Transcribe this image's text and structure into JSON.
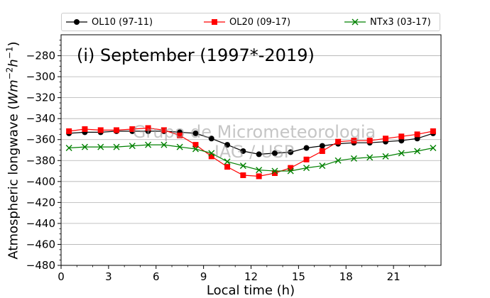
{
  "chart_data": {
    "type": "line",
    "title": "(i) September (1997*-2019)",
    "xlabel": "Local time (h)",
    "ylabel_main": "Atmospheric longwave (",
    "ylabel_unit": "Wm",
    "ylabel_exp1": "−2",
    "ylabel_unit2": "h",
    "ylabel_exp2": "−1",
    "ylabel_close": ")",
    "xlim": [
      0,
      24
    ],
    "ylim": [
      -480,
      -260
    ],
    "xticks": [
      0,
      3,
      6,
      9,
      12,
      15,
      18,
      21
    ],
    "yticks": [
      -480,
      -460,
      -440,
      -420,
      -400,
      -380,
      -360,
      -340,
      -320,
      -300,
      -280
    ],
    "grid": "horizontal",
    "legend_position": "top",
    "watermark": "Grupo de Micrometeorologia\nIAG / USP",
    "x": [
      0.5,
      1.5,
      2.5,
      3.5,
      4.5,
      5.5,
      6.5,
      7.5,
      8.5,
      9.5,
      10.5,
      11.5,
      12.5,
      13.5,
      14.5,
      15.5,
      16.5,
      17.5,
      18.5,
      19.5,
      20.5,
      21.5,
      22.5,
      23.5
    ],
    "series": [
      {
        "name": "OL10 (97-11)",
        "color": "#000000",
        "marker": "circle",
        "values": [
          -354,
          -353,
          -353,
          -352,
          -352,
          -352,
          -352,
          -353,
          -354,
          -359,
          -365,
          -371,
          -374,
          -373,
          -372,
          -368,
          -366,
          -364,
          -363,
          -363,
          -362,
          -361,
          -359,
          -354
        ]
      },
      {
        "name": "OL20 (09-17)",
        "color": "#ff0000",
        "marker": "square",
        "values": [
          -352,
          -350,
          -351,
          -351,
          -350,
          -349,
          -351,
          -356,
          -365,
          -376,
          -386,
          -394,
          -395,
          -392,
          -387,
          -379,
          -371,
          -362,
          -361,
          -361,
          -359,
          -357,
          -355,
          -352
        ]
      },
      {
        "name": "NTx3 (03-17)",
        "color": "#008000",
        "marker": "x",
        "values": [
          -368,
          -367,
          -367,
          -367,
          -366,
          -365,
          -365,
          -367,
          -369,
          -373,
          -381,
          -385,
          -389,
          -390,
          -390,
          -387,
          -385,
          -380,
          -378,
          -377,
          -376,
          -373,
          -371,
          -368
        ]
      }
    ]
  }
}
